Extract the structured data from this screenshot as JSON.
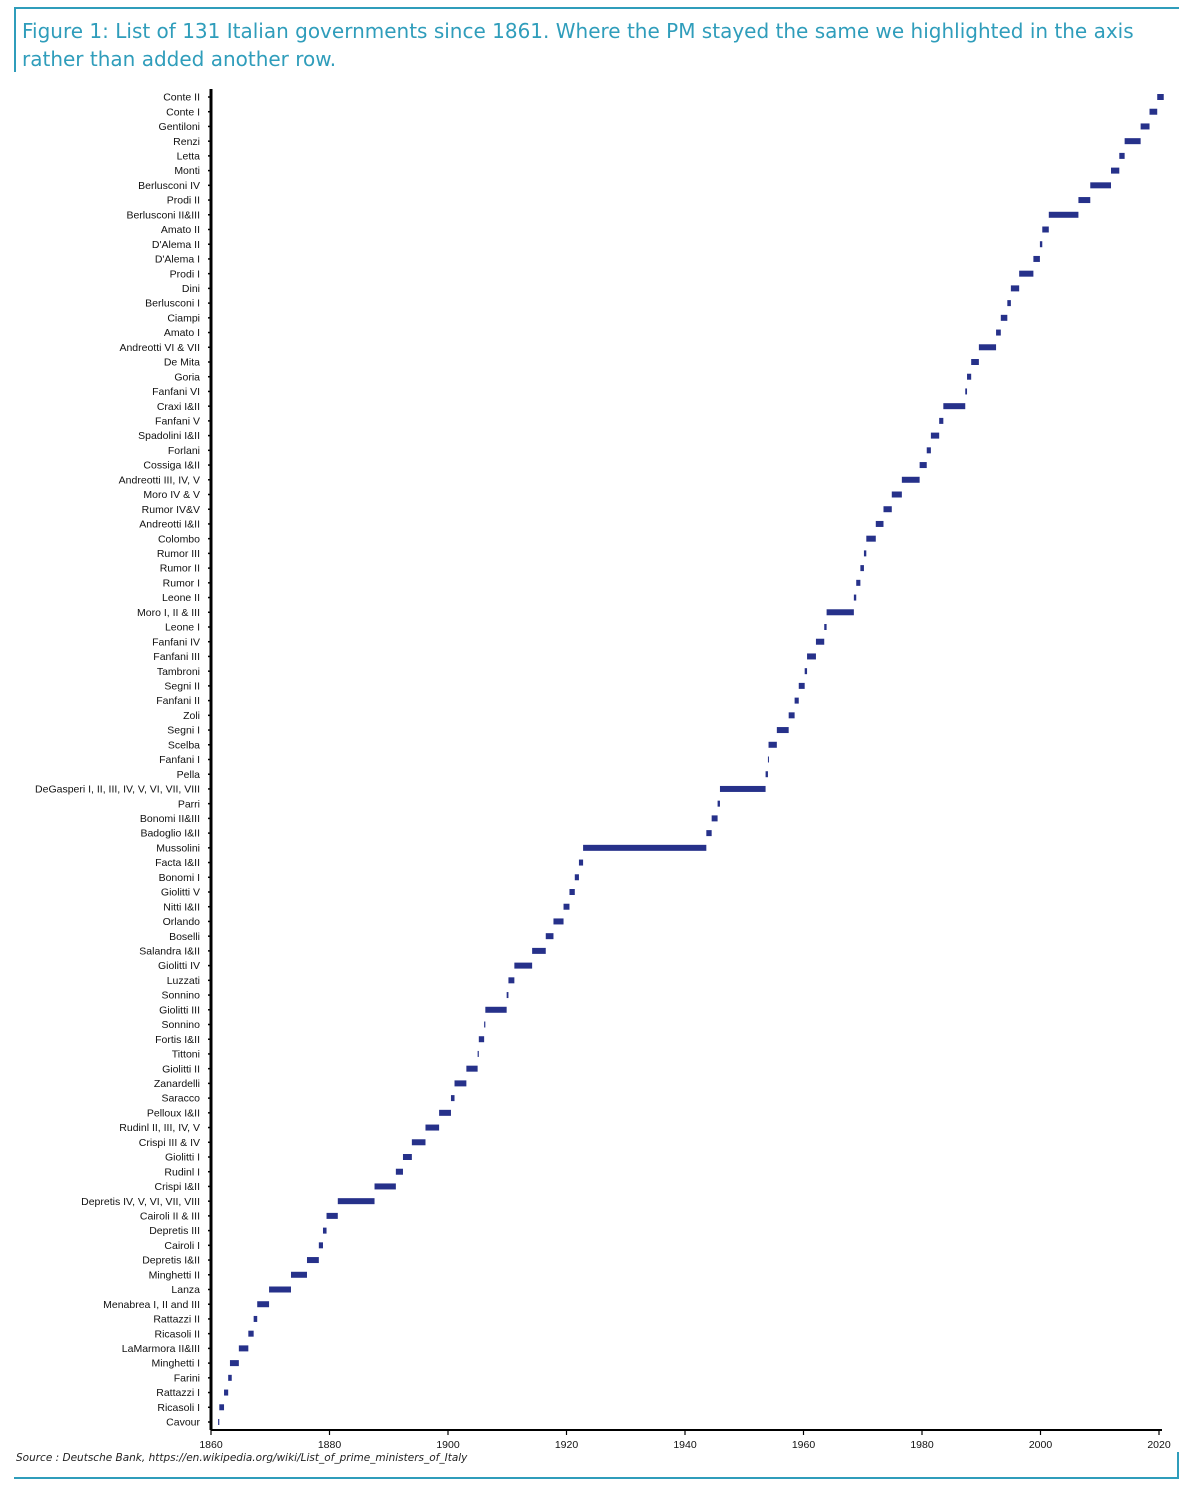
{
  "header": {
    "title": "Figure 1: List of 131 Italian governments since 1861. Where the PM stayed the same we highlighted in the axis rather than added another row."
  },
  "footer": {
    "source": "Source : Deutsche Bank, https://en.wikipedia.org/wiki/List_of_prime_ministers_of_Italy"
  },
  "colors": {
    "accent": "#2f9dbb",
    "bar": "#26318a",
    "axis": "#000000"
  },
  "chart_data": {
    "type": "bar",
    "orientation": "horizontal-range",
    "xlim": [
      1860,
      2020
    ],
    "x_ticks": [
      1860,
      1880,
      1900,
      1920,
      1940,
      1960,
      1980,
      2000,
      2020
    ],
    "grid": false,
    "legend": "none",
    "categories": [
      "Conte II",
      "Conte I",
      "Gentiloni",
      "Renzi",
      "Letta",
      "Monti",
      "Berlusconi IV",
      "Prodi II",
      "Berlusconi II&III",
      "Amato II",
      "D'Alema II",
      "D'Alema I",
      "Prodi I",
      "Dini",
      "Berlusconi I",
      "Ciampi",
      "Amato I",
      "Andreotti VI & VII",
      "De Mita",
      "Goria",
      "Fanfani VI",
      "Craxi I&II",
      "Fanfani V",
      "Spadolini I&II",
      "Forlani",
      "Cossiga I&II",
      "Andreotti III, IV, V",
      "Moro IV & V",
      "Rumor IV&V",
      "Andreotti I&II",
      "Colombo",
      "Rumor III",
      "Rumor II",
      "Rumor I",
      "Leone II",
      "Moro I, II & III",
      "Leone I",
      "Fanfani IV",
      "Fanfani III",
      "Tambroni",
      "Segni II",
      "Fanfani II",
      "Zoli",
      "Segni I",
      "Scelba",
      "Fanfani I",
      "Pella",
      "DeGasperi I, II, III, IV, V, VI, VII, VIII",
      "Parri",
      "Bonomi II&III",
      "Badoglio I&II",
      "Mussolini",
      "Facta I&II",
      "Bonomi I",
      "Giolitti V",
      "Nitti I&II",
      "Orlando",
      "Boselli",
      "Salandra I&II",
      "Giolitti IV",
      "Luzzati",
      "Sonnino",
      "Giolitti III",
      "Sonnino",
      "Fortis I&II",
      "Tittoni",
      "Giolitti II",
      "Zanardelli",
      "Saracco",
      "Pelloux I&II",
      "Rudinl II, III, IV, V",
      "Crispi III & IV",
      "Giolitti I",
      "Rudinl I",
      "Crispi I&II",
      "Depretis IV, V, VI, VII, VIII",
      "Cairoli II & III",
      "Depretis III",
      "Cairoli I",
      "Depretis I&II",
      "Minghetti II",
      "Lanza",
      "Menabrea I, II and III",
      "Rattazzi II",
      "Ricasoli II",
      "LaMarmora II&III",
      "Minghetti I",
      "Farini",
      "Rattazzi I",
      "Ricasoli I",
      "Cavour"
    ],
    "ranges": [
      [
        2019.7,
        2020.8
      ],
      [
        2018.4,
        2019.7
      ],
      [
        2016.9,
        2018.4
      ],
      [
        2014.2,
        2016.9
      ],
      [
        2013.3,
        2014.2
      ],
      [
        2011.9,
        2013.3
      ],
      [
        2008.4,
        2011.9
      ],
      [
        2006.4,
        2008.4
      ],
      [
        2001.4,
        2006.4
      ],
      [
        2000.3,
        2001.4
      ],
      [
        1999.9,
        2000.3
      ],
      [
        1998.8,
        1999.9
      ],
      [
        1996.4,
        1998.8
      ],
      [
        1995.0,
        1996.4
      ],
      [
        1994.4,
        1995.0
      ],
      [
        1993.3,
        1994.4
      ],
      [
        1992.5,
        1993.3
      ],
      [
        1989.6,
        1992.5
      ],
      [
        1988.3,
        1989.6
      ],
      [
        1987.6,
        1988.3
      ],
      [
        1987.3,
        1987.6
      ],
      [
        1983.6,
        1987.3
      ],
      [
        1982.9,
        1983.6
      ],
      [
        1981.5,
        1982.9
      ],
      [
        1980.8,
        1981.5
      ],
      [
        1979.6,
        1980.8
      ],
      [
        1976.6,
        1979.6
      ],
      [
        1974.9,
        1976.6
      ],
      [
        1973.5,
        1974.9
      ],
      [
        1972.2,
        1973.5
      ],
      [
        1970.6,
        1972.2
      ],
      [
        1970.2,
        1970.6
      ],
      [
        1969.6,
        1970.2
      ],
      [
        1968.9,
        1969.6
      ],
      [
        1968.5,
        1968.9
      ],
      [
        1963.9,
        1968.5
      ],
      [
        1963.5,
        1963.9
      ],
      [
        1962.1,
        1963.5
      ],
      [
        1960.6,
        1962.1
      ],
      [
        1960.2,
        1960.6
      ],
      [
        1959.2,
        1960.2
      ],
      [
        1958.5,
        1959.2
      ],
      [
        1957.5,
        1958.5
      ],
      [
        1955.5,
        1957.5
      ],
      [
        1954.1,
        1955.5
      ],
      [
        1954.0,
        1954.1
      ],
      [
        1953.6,
        1954.0
      ],
      [
        1945.9,
        1953.6
      ],
      [
        1945.5,
        1945.9
      ],
      [
        1944.5,
        1945.5
      ],
      [
        1943.6,
        1944.5
      ],
      [
        1922.8,
        1943.6
      ],
      [
        1922.1,
        1922.8
      ],
      [
        1921.4,
        1922.1
      ],
      [
        1920.5,
        1921.4
      ],
      [
        1919.5,
        1920.5
      ],
      [
        1917.8,
        1919.5
      ],
      [
        1916.5,
        1917.8
      ],
      [
        1914.2,
        1916.5
      ],
      [
        1911.2,
        1914.2
      ],
      [
        1910.2,
        1911.2
      ],
      [
        1909.9,
        1910.2
      ],
      [
        1906.3,
        1909.9
      ],
      [
        1906.1,
        1906.3
      ],
      [
        1905.2,
        1906.1
      ],
      [
        1905.0,
        1905.2
      ],
      [
        1903.1,
        1905.0
      ],
      [
        1901.1,
        1903.1
      ],
      [
        1900.5,
        1901.1
      ],
      [
        1898.5,
        1900.5
      ],
      [
        1896.2,
        1898.5
      ],
      [
        1893.9,
        1896.2
      ],
      [
        1892.4,
        1893.9
      ],
      [
        1891.2,
        1892.4
      ],
      [
        1887.6,
        1891.2
      ],
      [
        1881.4,
        1887.6
      ],
      [
        1879.5,
        1881.4
      ],
      [
        1878.9,
        1879.5
      ],
      [
        1878.2,
        1878.9
      ],
      [
        1876.2,
        1878.2
      ],
      [
        1873.5,
        1876.2
      ],
      [
        1869.8,
        1873.5
      ],
      [
        1867.8,
        1869.8
      ],
      [
        1867.2,
        1867.8
      ],
      [
        1866.3,
        1867.2
      ],
      [
        1864.7,
        1866.3
      ],
      [
        1863.2,
        1864.7
      ],
      [
        1862.9,
        1863.5
      ],
      [
        1862.2,
        1862.9
      ],
      [
        1861.4,
        1862.2
      ],
      [
        1861.2,
        1861.4
      ]
    ]
  }
}
